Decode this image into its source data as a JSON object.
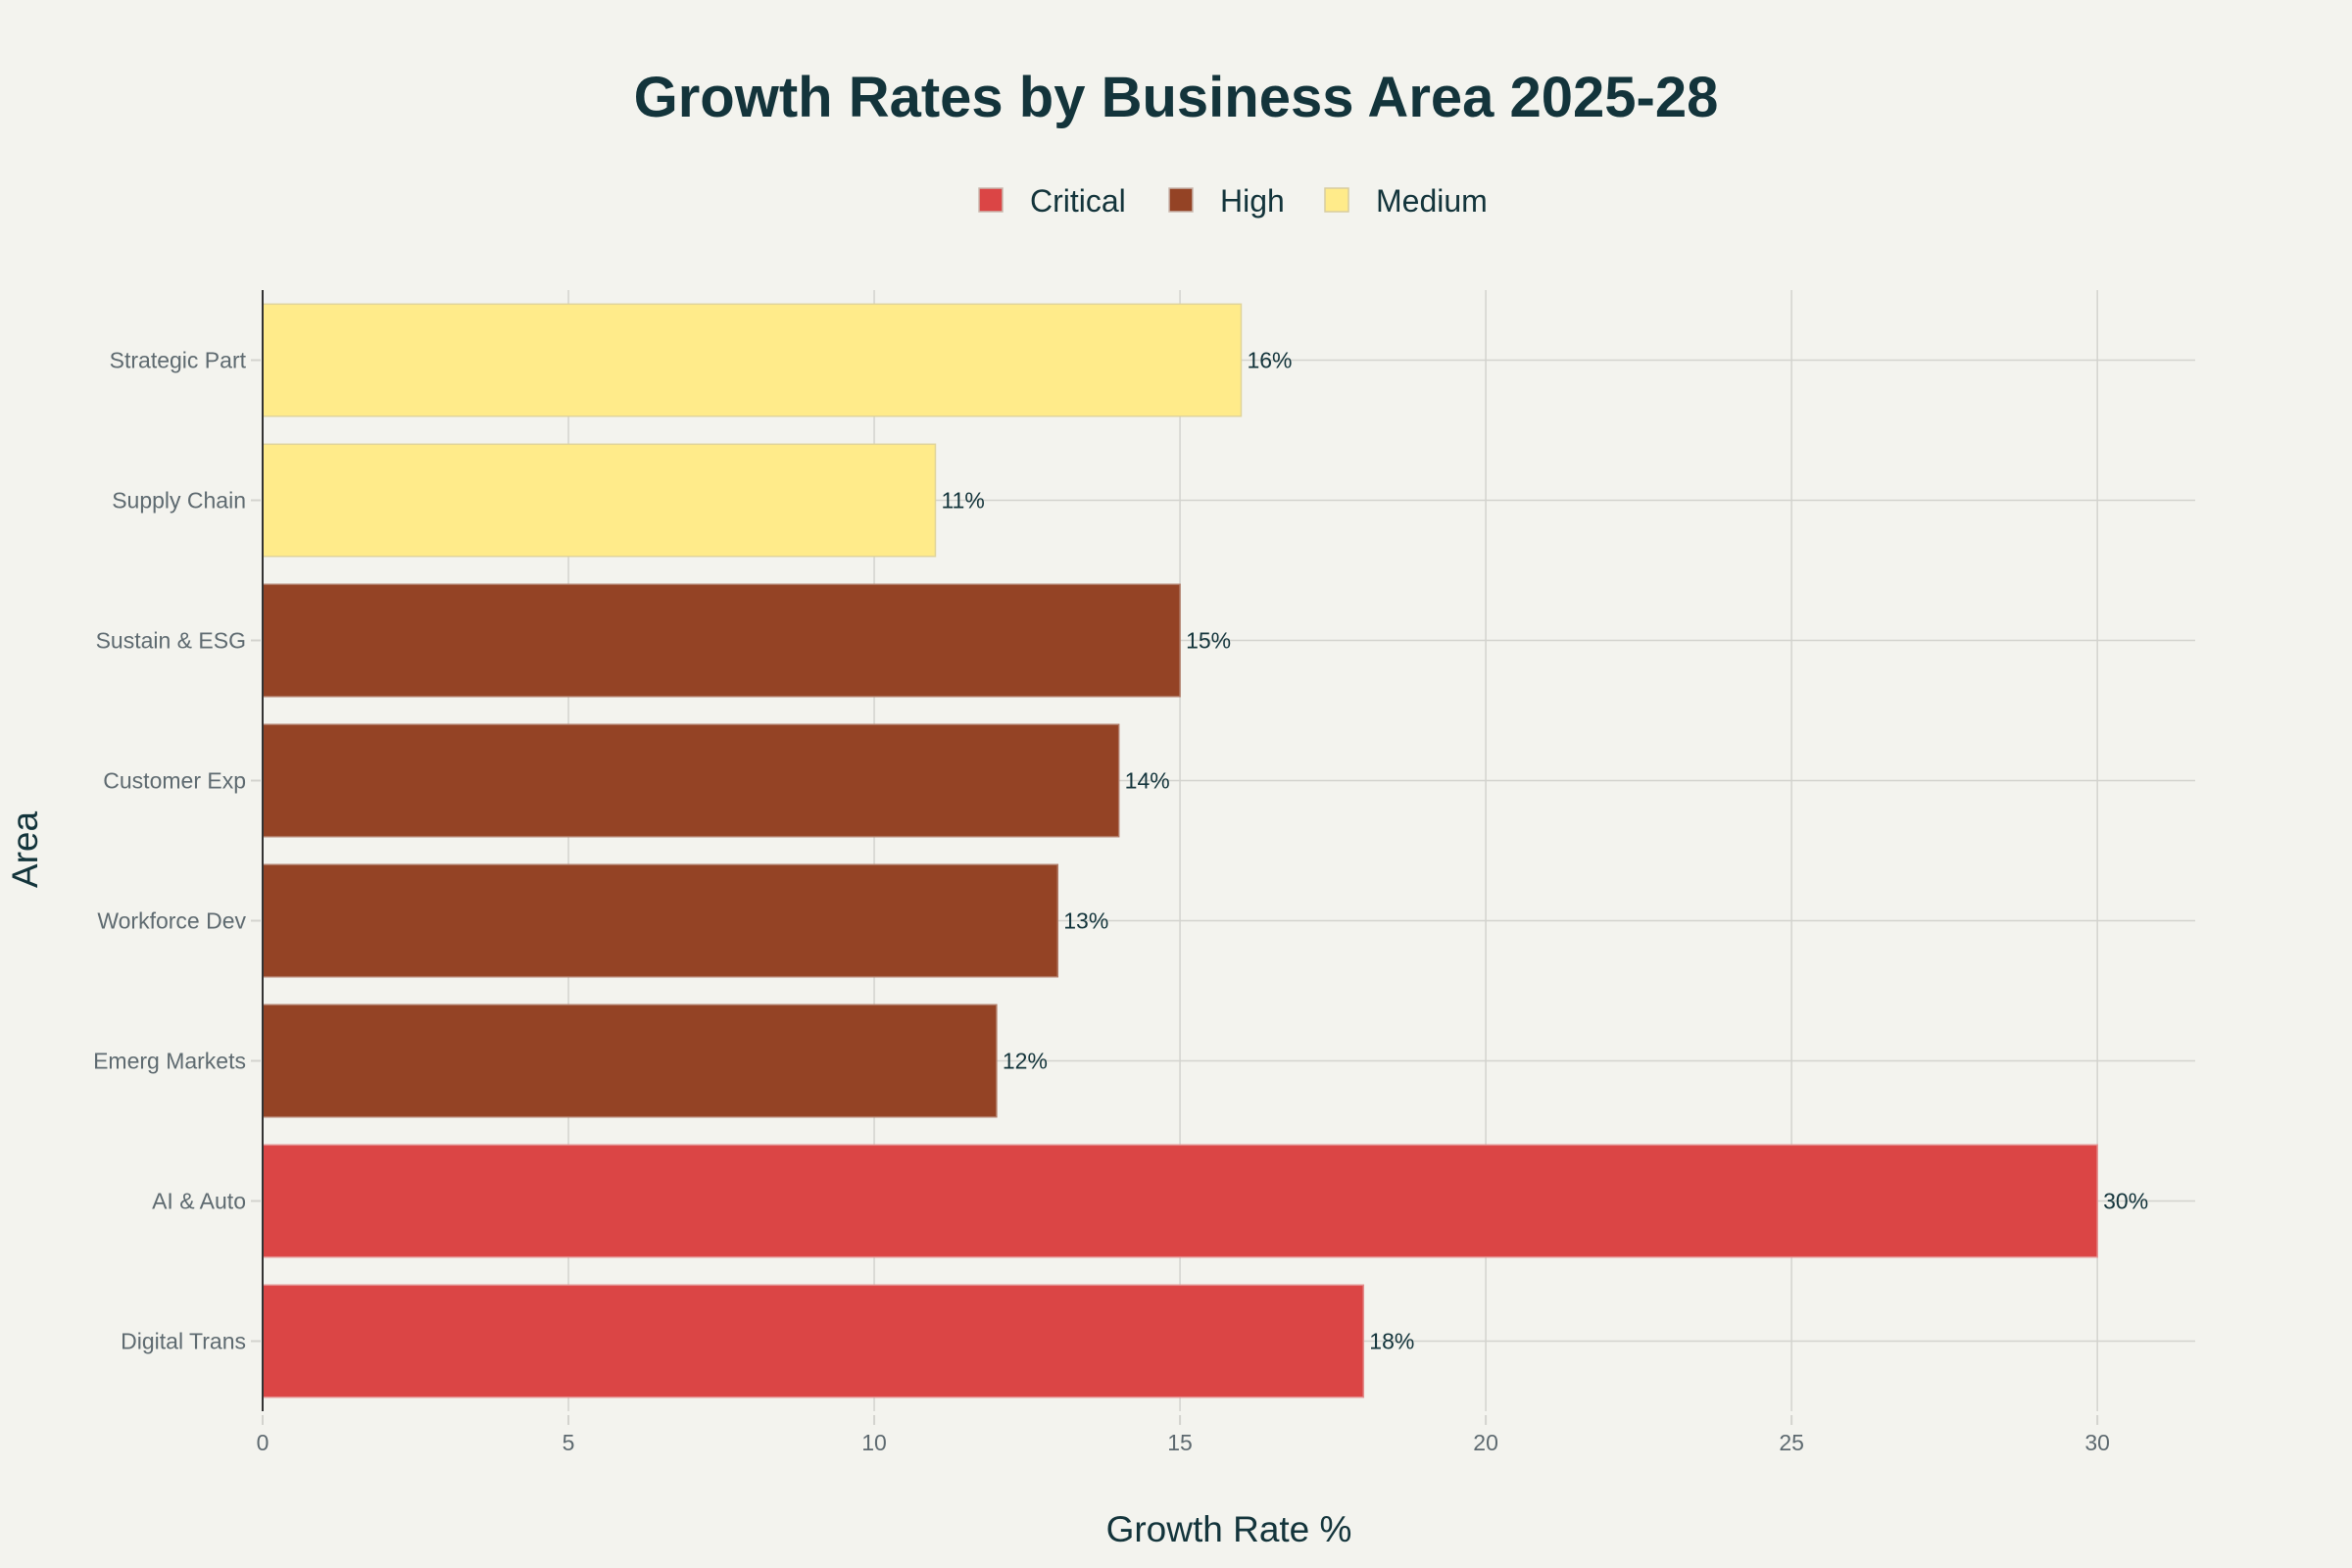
{
  "chart_data": {
    "type": "bar",
    "orientation": "horizontal",
    "title": "Growth Rates by Business Area 2025-28",
    "xlabel": "Growth Rate %",
    "ylabel": "Area",
    "xlim": [
      0,
      31.6
    ],
    "xticks": [
      0,
      5,
      10,
      15,
      20,
      25,
      30
    ],
    "grid": true,
    "legend_position": "top-center",
    "legend": [
      {
        "name": "Critical",
        "color": "#DB4545"
      },
      {
        "name": "High",
        "color": "#944325"
      },
      {
        "name": "Medium",
        "color": "#FFEB8A"
      }
    ],
    "categories": [
      "Digital Trans",
      "AI & Auto",
      "Emerg Markets",
      "Workforce Dev",
      "Customer Exp",
      "Sustain & ESG",
      "Supply Chain",
      "Strategic Part"
    ],
    "bars": [
      {
        "category": "Digital Trans",
        "value": 18,
        "label": "18%",
        "priority": "Critical"
      },
      {
        "category": "AI & Auto",
        "value": 30,
        "label": "30%",
        "priority": "Critical"
      },
      {
        "category": "Emerg Markets",
        "value": 12,
        "label": "12%",
        "priority": "High"
      },
      {
        "category": "Workforce Dev",
        "value": 13,
        "label": "13%",
        "priority": "High"
      },
      {
        "category": "Customer Exp",
        "value": 14,
        "label": "14%",
        "priority": "High"
      },
      {
        "category": "Sustain & ESG",
        "value": 15,
        "label": "15%",
        "priority": "High"
      },
      {
        "category": "Supply Chain",
        "value": 11,
        "label": "11%",
        "priority": "Medium"
      },
      {
        "category": "Strategic Part",
        "value": 16,
        "label": "16%",
        "priority": "Medium"
      }
    ],
    "series": [
      {
        "name": "Critical",
        "color": "#DB4545",
        "values": [
          18,
          30,
          null,
          null,
          null,
          null,
          null,
          null
        ]
      },
      {
        "name": "High",
        "color": "#944325",
        "values": [
          null,
          null,
          12,
          13,
          14,
          15,
          null,
          null
        ]
      },
      {
        "name": "Medium",
        "color": "#FFEB8A",
        "values": [
          null,
          null,
          null,
          null,
          null,
          null,
          11,
          16
        ]
      }
    ]
  }
}
